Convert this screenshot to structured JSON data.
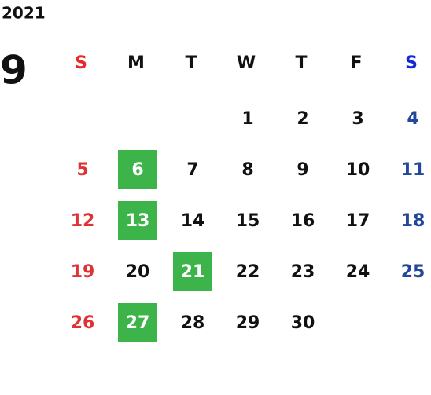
{
  "year": "2021",
  "month": "9",
  "weekdays": [
    "S",
    "M",
    "T",
    "W",
    "T",
    "F",
    "S"
  ],
  "weekday_colors": [
    "#e8262b",
    "#111111",
    "#111111",
    "#111111",
    "#111111",
    "#111111",
    "#1428d8"
  ],
  "day_colors": [
    "#e03232",
    "#111111",
    "#111111",
    "#111111",
    "#111111",
    "#111111",
    "#23479a"
  ],
  "weeks": [
    [
      null,
      null,
      null,
      1,
      2,
      3,
      4
    ],
    [
      5,
      6,
      7,
      8,
      9,
      10,
      11
    ],
    [
      12,
      13,
      14,
      15,
      16,
      17,
      18
    ],
    [
      19,
      20,
      21,
      22,
      23,
      24,
      25
    ],
    [
      26,
      27,
      28,
      29,
      30,
      null,
      null
    ]
  ],
  "highlighted_days": [
    6,
    13,
    21,
    27
  ],
  "highlight_color": "#3cb44a",
  "highlight_text_color": "#ffffff"
}
